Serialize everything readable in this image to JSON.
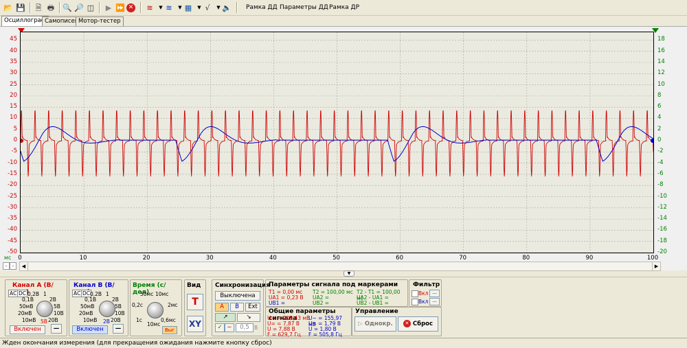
{
  "toolbar": {
    "menu_frame_dd": "Рамка ДД",
    "menu_params_dd": "Параметры ДД",
    "menu_frame_dr": "Рамка ДР"
  },
  "tabs": [
    "Осциллограф",
    "Самописец",
    "Мотор-тестер"
  ],
  "graph": {
    "x_unit": "мс",
    "x_ticks": [
      "0",
      "10",
      "20",
      "30",
      "40",
      "50",
      "60",
      "70",
      "80",
      "90",
      "100"
    ],
    "y_left_ticks": [
      "45",
      "40",
      "35",
      "30",
      "25",
      "20",
      "15",
      "10",
      "5",
      "0",
      "-5",
      "-10",
      "-15",
      "-20",
      "-25",
      "-30",
      "-35",
      "-40",
      "-45",
      "-50"
    ],
    "y_right_ticks": [
      "18",
      "16",
      "14",
      "12",
      "10",
      "8",
      "6",
      "4",
      "2",
      "0",
      "-2",
      "-4",
      "-6",
      "-8",
      "-10",
      "-12",
      "-14",
      "-16",
      "-18",
      "-20"
    ],
    "colors": {
      "channel_a": "#d00000",
      "channel_b": "#0000cc",
      "grid": "#9a9a8a",
      "background": "#eaeae0"
    }
  },
  "channel_a": {
    "title": "Канал А (В/дел)",
    "knob_labels": [
      "0,2В",
      "1",
      "0,1В",
      "2В",
      "50мВ",
      "5В",
      "20мВ",
      "10В",
      "10мВ",
      "20В"
    ],
    "value_label": "5В",
    "enabled_label": "Включен",
    "ac_label": "АС",
    "dc_label": "DC"
  },
  "channel_b": {
    "title": "Канал В (В/дел)",
    "knob_labels": [
      "0,2В",
      "1",
      "0,1В",
      "2В",
      "50мВ",
      "5В",
      "20мВ",
      "10В",
      "10мВ",
      "20В"
    ],
    "value_label": "2В",
    "enabled_label": "Включен",
    "ac_label": "АС",
    "dc_label": "DC"
  },
  "time": {
    "title": "Время (с/дел)",
    "knob_labels": [
      "50мс",
      "10мс",
      "0,2с",
      "2мс",
      "1с",
      "0,6мс"
    ],
    "value_label": "10мс",
    "button_label": "Выг"
  },
  "view": {
    "title": "Вид",
    "t_label": "T",
    "xy_label": "XY"
  },
  "sync": {
    "title": "Синхронизация",
    "off_label": "Выключена",
    "a_label": "A",
    "b_label": "B",
    "ext_label": "Ext",
    "level_value": "0,5",
    "level_unit": "В"
  },
  "markers": {
    "title": "Параметры сигнала под маркерами",
    "t1": "T1 = 0,00 мс",
    "ua1": "UA1 = 0,23 В",
    "ub1": "UB1 =",
    "t2": "T2 = 100,00 мс",
    "ua2": "UA2 =",
    "ub2": "UB2 =",
    "dt": "T2 - T1 = 100,00 мс",
    "dua": "UA2 - UA1 =",
    "dub": "UB2 - UB1 ="
  },
  "general": {
    "title": "Общие параметры сигнала",
    "a_u_tilde": "U~ = 208,43 мВ",
    "a_u_eq": "U= = 7,87 В",
    "a_u": "U = 7,88 В",
    "a_f": "F = 629,7 Гц",
    "b_u_tilde": "U~ = 155,97 мВ",
    "b_u_eq": "U= = 1,79 В",
    "b_u": "U = 1,80 В",
    "b_f": "F = 505,8 Гц"
  },
  "filter": {
    "title": "Фильтр",
    "on1": "Вкл",
    "on2": "Вкл",
    "dots": "..."
  },
  "control": {
    "title": "Управление",
    "single_label": "Однокр.",
    "reset_label": "Сброс"
  },
  "status": {
    "text": "Жден окончания измерения (для прекращения ожидания нажмите кнопку сброс)"
  }
}
